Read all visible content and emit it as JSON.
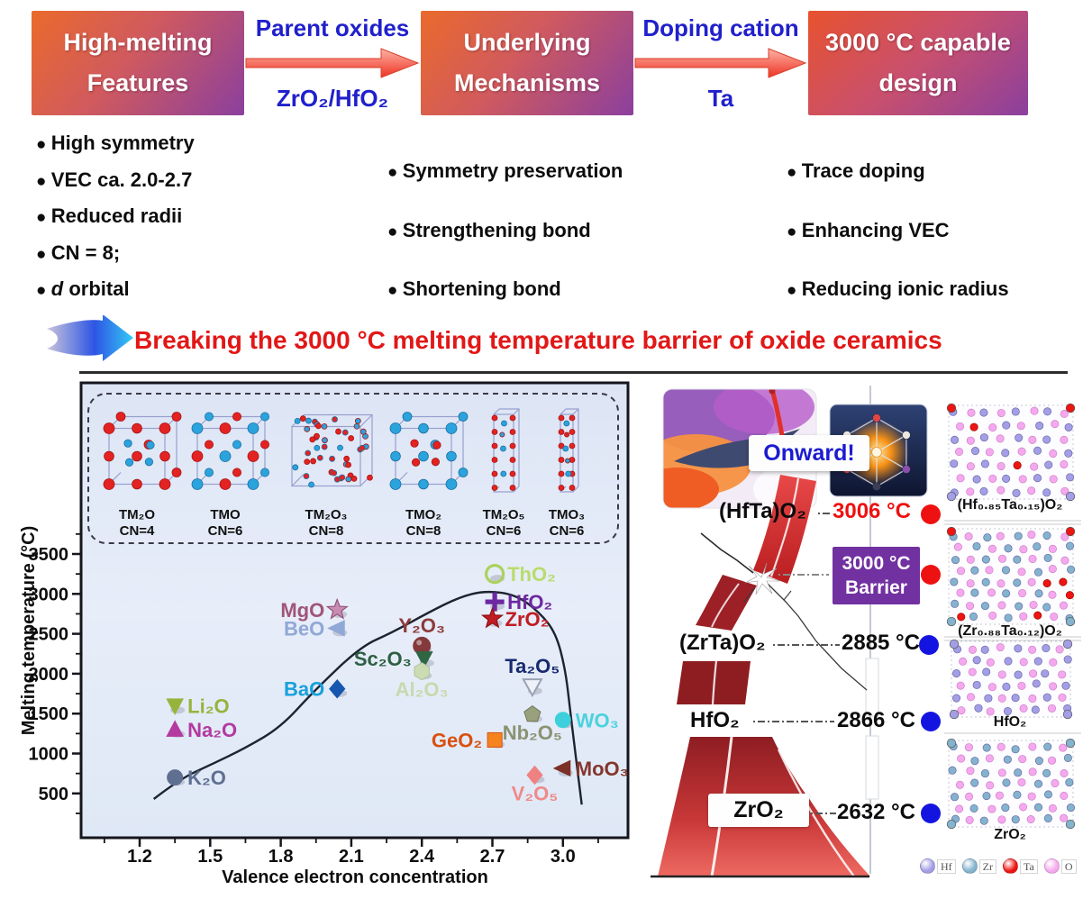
{
  "header": {
    "boxes": [
      {
        "line1": "High-melting",
        "line2": "Features"
      },
      {
        "line1": "Underlying",
        "line2": "Mechanisms"
      },
      {
        "line1": "3000 °C capable",
        "line2": "design"
      }
    ],
    "arrows": [
      {
        "top": "Parent oxides",
        "bottom": "ZrO₂/HfO₂"
      },
      {
        "top": "Doping cation",
        "bottom": "Ta"
      }
    ],
    "bullets_col1": [
      "High symmetry",
      "VEC ca. 2.0-2.7",
      "Reduced radii",
      "CN = 8;"
    ],
    "bullets_col1_last": {
      "italic": "d",
      "rest": " orbital"
    },
    "bullets_col2": [
      "Symmetry preservation",
      "Strengthening bond",
      "Shortening bond"
    ],
    "bullets_col3": [
      "Trace doping",
      "Enhancing VEC",
      "Reducing ionic radius"
    ]
  },
  "banner": {
    "text": "Breaking the 3000 °C melting temperature barrier of oxide ceramics",
    "color": "#e21717"
  },
  "chart_data": {
    "type": "scatter",
    "xlabel": "Valence electron concentration",
    "ylabel": "Melting temperature (°C)",
    "x_ticks": [
      1.2,
      1.5,
      1.8,
      2.1,
      2.4,
      2.7,
      3.0
    ],
    "y_ticks": [
      500,
      1000,
      1500,
      2000,
      2500,
      3000,
      3500
    ],
    "xlim": [
      0.95,
      3.28
    ],
    "ylim": [
      0,
      3600
    ],
    "grid": false,
    "structures": [
      {
        "formula": "TM₂O",
        "cn": "CN=4"
      },
      {
        "formula": "TMO",
        "cn": "CN=6"
      },
      {
        "formula": "TM₂O₃",
        "cn": "CN=8"
      },
      {
        "formula": "TMO₂",
        "cn": "CN=8"
      },
      {
        "formula": "TM₂O₅",
        "cn": "CN=6"
      },
      {
        "formula": "TMO₃",
        "cn": "CN=6"
      }
    ],
    "points": [
      {
        "label": "K₂O",
        "vec": 1.35,
        "temp": 700,
        "marker": "circle",
        "color": "#5f6f90",
        "label_color": "#5f6f90",
        "side": "right"
      },
      {
        "label": "Li₂O",
        "vec": 1.35,
        "temp": 1600,
        "marker": "triangle-down",
        "color": "#96b43c",
        "label_color": "#96b43c",
        "side": "right"
      },
      {
        "label": "Na₂O",
        "vec": 1.35,
        "temp": 1300,
        "marker": "triangle-up",
        "color": "#b23aa0",
        "label_color": "#b23aa0",
        "side": "right"
      },
      {
        "label": "BaO",
        "vec": 2.04,
        "temp": 1810,
        "marker": "diamond",
        "color": "#1456b0",
        "label_color": "#18a0dc",
        "side": "left"
      },
      {
        "label": "MgO",
        "vec": 2.04,
        "temp": 2800,
        "marker": "star",
        "color": "#c98cb4",
        "stroke": "#96537a",
        "label_color": "#a05578",
        "side": "left"
      },
      {
        "label": "BeO",
        "vec": 2.04,
        "temp": 2570,
        "marker": "triangle-left",
        "color": "#90a8d6",
        "label_color": "#90a8d6",
        "side": "left"
      },
      {
        "label": "Y₂O₃",
        "vec": 2.4,
        "temp": 2350,
        "marker": "sphere",
        "color": "#84393c",
        "label_color": "#8c3b3b",
        "side": "above"
      },
      {
        "label": "Sc₂O₃",
        "vec": 2.41,
        "temp": 2190,
        "marker": "triangle-down",
        "color": "#2f6644",
        "label_color": "#2e5f41",
        "side": "left"
      },
      {
        "label": "Al₂O₃",
        "vec": 2.4,
        "temp": 2030,
        "marker": "hexagon",
        "color": "#cbdcb2",
        "stroke": "#aec39a",
        "label_color": "#c8d9ae",
        "side": "below"
      },
      {
        "label": "ThO₂",
        "vec": 2.71,
        "temp": 3250,
        "marker": "open-circle",
        "color": "#abd25e",
        "label_color": "#b8dc6d",
        "side": "right"
      },
      {
        "label": "HfO₂",
        "vec": 2.71,
        "temp": 2900,
        "marker": "plus",
        "color": "#6d28a0",
        "label_color": "#6d28a0",
        "side": "right"
      },
      {
        "label": "ZrO₂",
        "vec": 2.7,
        "temp": 2690,
        "marker": "star",
        "color": "#c01c24",
        "stroke": "#8f1118",
        "label_color": "#c01c24",
        "side": "right"
      },
      {
        "label": "Ta₂O₅",
        "vec": 2.87,
        "temp": 1840,
        "marker": "open-triangle-down",
        "color": "#9aa2b2",
        "label_color": "#182a70",
        "side": "above"
      },
      {
        "label": "Nb₂O₅",
        "vec": 2.87,
        "temp": 1490,
        "marker": "pentagon",
        "color": "#99a07c",
        "stroke": "#6f7656",
        "label_color": "#8b9273",
        "side": "below"
      },
      {
        "label": "WO₃",
        "vec": 3.0,
        "temp": 1420,
        "marker": "circle",
        "color": "#3ecfdc",
        "label_color": "#4ad2dd",
        "side": "right"
      },
      {
        "label": "GeO₂",
        "vec": 2.71,
        "temp": 1170,
        "marker": "square",
        "color": "#f5831e",
        "stroke": "#d9500f",
        "label_color": "#d9500f",
        "side": "left"
      },
      {
        "label": "V₂O₅",
        "vec": 2.88,
        "temp": 730,
        "marker": "diamond",
        "color": "#ee8282",
        "label_color": "#ef8a8a",
        "side": "below"
      },
      {
        "label": "MoO₃",
        "vec": 3.0,
        "temp": 815,
        "marker": "triangle-left",
        "color": "#7c3028",
        "label_color": "#84362c",
        "side": "right"
      }
    ],
    "trend_curve": [
      [
        1.26,
        430
      ],
      [
        1.37,
        680
      ],
      [
        1.51,
        870
      ],
      [
        1.65,
        1070
      ],
      [
        1.8,
        1330
      ],
      [
        1.94,
        1780
      ],
      [
        2.14,
        2340
      ],
      [
        2.27,
        2510
      ],
      [
        2.43,
        2770
      ],
      [
        2.56,
        2960
      ],
      [
        2.67,
        3040
      ],
      [
        2.8,
        2990
      ],
      [
        2.9,
        2770
      ],
      [
        2.97,
        2510
      ],
      [
        3.01,
        2060
      ],
      [
        3.03,
        1560
      ],
      [
        3.05,
        1070
      ],
      [
        3.08,
        360
      ]
    ]
  },
  "right_panel": {
    "onward": "Onward!",
    "rows": [
      {
        "name": "(HfTa)O₂",
        "temp": "3006 °C",
        "dot": "red"
      },
      {
        "name": "(ZrTa)O₂",
        "temp": "2885 °C",
        "dot": "blue"
      },
      {
        "name": "HfO₂",
        "temp": "2866 °C",
        "dot": "blue"
      },
      {
        "name": "ZrO₂",
        "temp": "2632 °C",
        "dot": "blue"
      }
    ],
    "barrier": {
      "line1": "3000 °C",
      "line2": "Barrier",
      "dot": "red"
    },
    "panels": [
      {
        "label": "(Hf₀.₈₅Ta₀.₁₅)O₂",
        "metal": "Hf",
        "doped": true
      },
      {
        "label": "(Zr₀.₈₈Ta₀.₁₂)O₂",
        "metal": "Zr",
        "doped": true
      },
      {
        "label": "HfO₂",
        "metal": "Hf",
        "doped": false
      },
      {
        "label": "ZrO₂",
        "metal": "Zr",
        "doped": false
      }
    ],
    "legend": [
      {
        "label": "Hf",
        "color": "#a39ee6"
      },
      {
        "label": "Zr",
        "color": "#83b3cd"
      },
      {
        "label": "Ta",
        "color": "#ee1411"
      },
      {
        "label": "O",
        "color": "#f4a9ee"
      }
    ]
  }
}
